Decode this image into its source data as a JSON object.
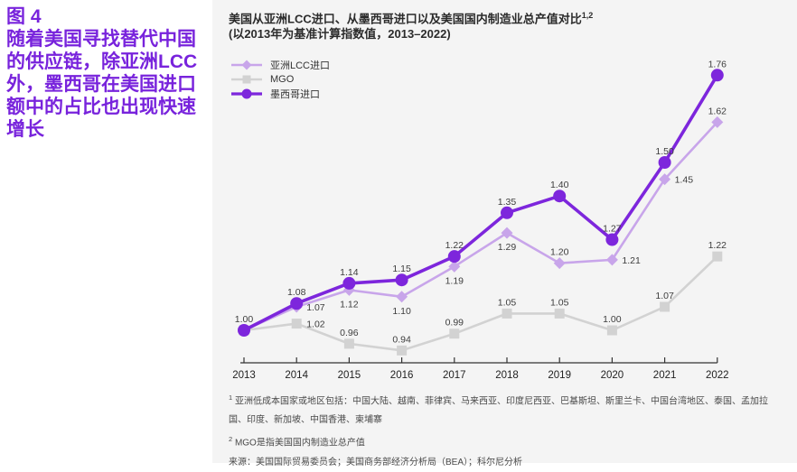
{
  "sidebar": {
    "figure_label": "图 4",
    "headline": "随着美国寻找替代中国的供应链，除亚洲LCC外，墨西哥在美国进口额中的占比也出现快速增长"
  },
  "chart_header": {
    "title": "美国从亚洲LCC进口、从墨西哥进口以及美国国内制造业总产值对比",
    "title_superscript": "1,2",
    "subtitle": "(以2013年为基准计算指数值，2013–2022)"
  },
  "chart_data": {
    "type": "line",
    "title": "美国从亚洲LCC进口、从墨西哥进口以及美国国内制造业总产值对比 (以2013年为基准计算指数值，2013–2022)",
    "categories": [
      "2013",
      "2014",
      "2015",
      "2016",
      "2017",
      "2018",
      "2019",
      "2020",
      "2021",
      "2022"
    ],
    "series": [
      {
        "name": "亚洲LCC进口",
        "marker": "diamond",
        "color": "#c8a5ea",
        "values": [
          1.0,
          1.07,
          1.12,
          1.1,
          1.19,
          1.29,
          1.2,
          1.21,
          1.45,
          1.62
        ],
        "label_pos": [
          "n",
          "r",
          "b",
          "b",
          "b",
          "b",
          "a",
          "r",
          "r",
          "a"
        ]
      },
      {
        "name": "MGO",
        "marker": "square",
        "color": "#d2d2d2",
        "values": [
          1.0,
          1.02,
          0.96,
          0.94,
          0.99,
          1.05,
          1.05,
          1.0,
          1.07,
          1.22
        ],
        "label_pos": [
          "n",
          "r",
          "a",
          "a",
          "a",
          "a",
          "a",
          "a",
          "a",
          "a"
        ]
      },
      {
        "name": "墨西哥进口",
        "marker": "circle",
        "color": "#7d26dc",
        "values": [
          1.0,
          1.08,
          1.14,
          1.15,
          1.22,
          1.35,
          1.4,
          1.27,
          1.5,
          1.76
        ],
        "label_pos": [
          "a",
          "a",
          "a",
          "a",
          "a",
          "a",
          "a",
          "a",
          "a",
          "a"
        ]
      }
    ],
    "ylim": [
      0.85,
      1.85
    ],
    "grid": false,
    "legend_position": "top-left",
    "value_format": "0.00"
  },
  "footnotes": [
    {
      "sup": "1",
      "text": "亚洲低成本国家或地区包括：中国大陆、越南、菲律宾、马来西亚、印度尼西亚、巴基斯坦、斯里兰卡、中国台湾地区、泰国、孟加拉国、印度、新加坡、中国香港、柬埔寨"
    },
    {
      "sup": "2",
      "text": "MGO是指美国国内制造业总产值"
    }
  ],
  "source": "来源：美国国际贸易委员会；美国商务部经济分析局（BEA）；科尔尼分析",
  "colors": {
    "accent": "#7823dc",
    "panel_bg": "#f4f4f4",
    "sidebar_bg": "#ffffff",
    "axis": "#333333",
    "point_label": "#3d3d3d",
    "asia_lcc_line": "#c8a5ea",
    "mgo_line": "#d2d2d2",
    "mexico_line": "#7d26dc"
  }
}
